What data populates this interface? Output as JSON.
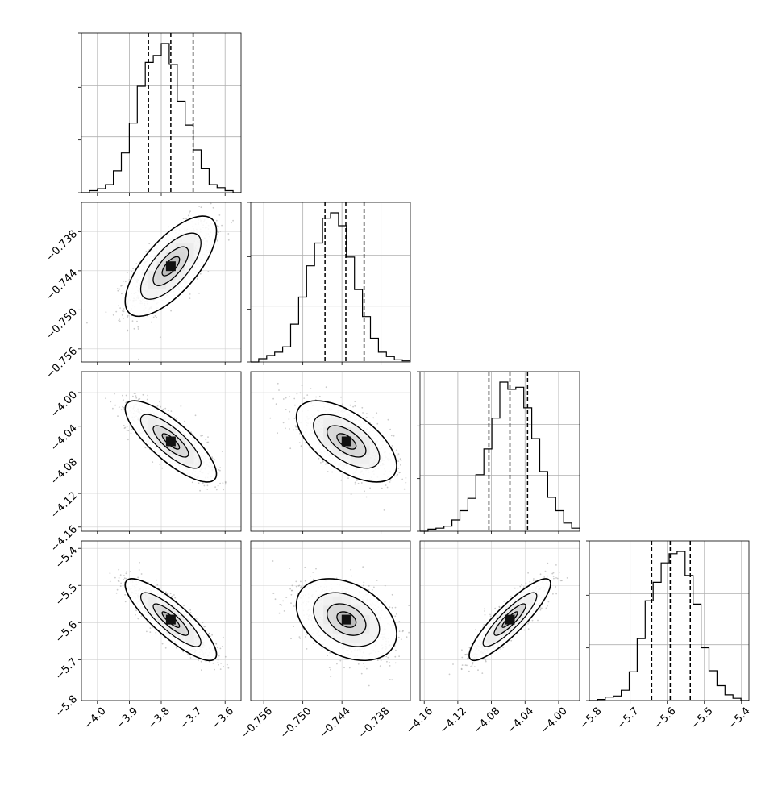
{
  "chart_data": {
    "type": "corner",
    "grid": true,
    "parameters": [
      {
        "range": [
          -4.05,
          -3.55
        ],
        "ticks": [
          -4.0,
          -3.9,
          -3.8,
          -3.7,
          -3.6
        ],
        "tick_labels": [
          "−4.0",
          "−3.9",
          "−3.8",
          "−3.7",
          "−3.6"
        ],
        "quantiles": [
          -3.84,
          -3.77,
          -3.7
        ],
        "hist": {
          "edges_start": -4.05,
          "bin_width": 0.025,
          "counts": [
            0,
            2,
            4,
            8,
            22,
            40,
            70,
            107,
            131,
            138,
            150,
            129,
            92,
            68,
            43,
            24,
            8,
            5,
            2,
            0
          ]
        }
      },
      {
        "range": [
          -0.758,
          -0.7335
        ],
        "ticks": [
          -0.756,
          -0.75,
          -0.744,
          -0.738
        ],
        "tick_labels": [
          "−0.756",
          "−0.750",
          "−0.744",
          "−0.738"
        ],
        "quantiles": [
          -0.7466,
          -0.7434,
          -0.7406
        ],
        "hist": {
          "edges_start": -0.758,
          "bin_width": 0.001225,
          "counts": [
            0,
            3,
            6,
            9,
            14,
            35,
            60,
            89,
            110,
            133,
            138,
            126,
            97,
            67,
            42,
            22,
            9,
            5,
            2,
            1
          ]
        }
      },
      {
        "range": [
          -4.165,
          -3.975
        ],
        "ticks": [
          -4.16,
          -4.12,
          -4.08,
          -4.04,
          -4.0
        ],
        "tick_labels": [
          "−4.16",
          "−4.12",
          "−4.08",
          "−4.04",
          "−4.00"
        ],
        "quantiles": [
          -4.083,
          -4.058,
          -4.037
        ],
        "hist": {
          "edges_start": -4.165,
          "bin_width": 0.0095,
          "counts": [
            0,
            2,
            3,
            5,
            11,
            20,
            32,
            55,
            80,
            110,
            145,
            138,
            140,
            120,
            90,
            58,
            33,
            20,
            8,
            3
          ]
        }
      },
      {
        "range": [
          -5.81,
          -5.38
        ],
        "ticks": [
          -5.8,
          -5.7,
          -5.6,
          -5.5,
          -5.4
        ],
        "tick_labels": [
          "−5.8",
          "−5.7",
          "−5.6",
          "−5.5",
          "−5.4"
        ],
        "quantiles": [
          -5.642,
          -5.592,
          -5.538
        ],
        "hist": {
          "edges_start": -5.81,
          "bin_width": 0.0215,
          "counts": [
            0,
            1,
            3,
            4,
            9,
            25,
            54,
            87,
            103,
            120,
            128,
            130,
            109,
            84,
            46,
            26,
            13,
            5,
            2,
            0
          ]
        }
      }
    ],
    "joint": [
      {
        "row": 1,
        "col": 0,
        "center": [
          -3.77,
          -0.7433
        ],
        "sx": 0.065,
        "sy": 0.0035,
        "rho": 0.7
      },
      {
        "row": 2,
        "col": 0,
        "center": [
          -3.77,
          -4.058
        ],
        "sx": 0.065,
        "sy": 0.022,
        "rho": -0.8
      },
      {
        "row": 2,
        "col": 1,
        "center": [
          -0.7433,
          -4.058
        ],
        "sx": 0.0035,
        "sy": 0.022,
        "rho": -0.6
      },
      {
        "row": 3,
        "col": 0,
        "center": [
          -3.77,
          -5.592
        ],
        "sx": 0.065,
        "sy": 0.05,
        "rho": -0.85
      },
      {
        "row": 3,
        "col": 1,
        "center": [
          -0.7433,
          -5.592
        ],
        "sx": 0.0035,
        "sy": 0.05,
        "rho": -0.35
      },
      {
        "row": 3,
        "col": 2,
        "center": [
          -4.058,
          -5.592
        ],
        "sx": 0.022,
        "sy": 0.05,
        "rho": 0.88
      }
    ]
  }
}
